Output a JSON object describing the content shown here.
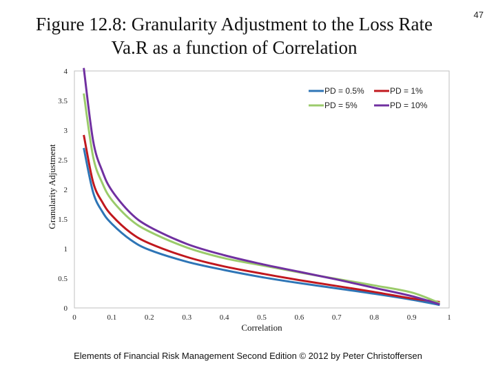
{
  "slide": {
    "title_line1": "Figure 12.8: Granularity Adjustment to the Loss Rate",
    "title_line2": "Va.R as a function of Correlation",
    "page_number": "47",
    "footer": "Elements of Financial Risk Management Second Edition © 2012  by Peter Christoffersen"
  },
  "chart_data": {
    "type": "line",
    "title": "",
    "xlabel": "Correlation",
    "ylabel": "Granularity Adjustment",
    "xlim": [
      0,
      1
    ],
    "ylim": [
      0,
      4
    ],
    "x_ticks": [
      "0",
      "0.1",
      "0.2",
      "0.3",
      "0.4",
      "0.5",
      "0.6",
      "0.7",
      "0.8",
      "0.9",
      "1"
    ],
    "y_ticks": [
      "0",
      "0.5",
      "1",
      "1.5",
      "2",
      "2.5",
      "3",
      "3.5",
      "4"
    ],
    "grid": false,
    "legend_position": "top-right",
    "x": [
      0.025,
      0.05,
      0.075,
      0.1,
      0.15,
      0.2,
      0.3,
      0.4,
      0.5,
      0.6,
      0.7,
      0.8,
      0.9,
      0.975
    ],
    "series": [
      {
        "name": "PD = 0.5%",
        "color": "#2e75b6",
        "values": [
          2.7,
          1.95,
          1.62,
          1.42,
          1.15,
          0.98,
          0.78,
          0.64,
          0.52,
          0.42,
          0.33,
          0.24,
          0.14,
          0.05
        ]
      },
      {
        "name": "PD = 1%",
        "color": "#c0181e",
        "values": [
          2.92,
          2.12,
          1.78,
          1.56,
          1.27,
          1.09,
          0.86,
          0.7,
          0.58,
          0.47,
          0.37,
          0.27,
          0.16,
          0.1
        ]
      },
      {
        "name": "PD = 5%",
        "color": "#9bcb6b",
        "values": [
          3.62,
          2.55,
          2.1,
          1.82,
          1.49,
          1.29,
          1.02,
          0.84,
          0.72,
          0.6,
          0.49,
          0.38,
          0.26,
          0.08
        ]
      },
      {
        "name": "PD = 10%",
        "color": "#7030a0",
        "values": [
          4.05,
          2.82,
          2.3,
          1.98,
          1.6,
          1.37,
          1.08,
          0.89,
          0.74,
          0.61,
          0.48,
          0.34,
          0.2,
          0.06
        ]
      }
    ]
  }
}
